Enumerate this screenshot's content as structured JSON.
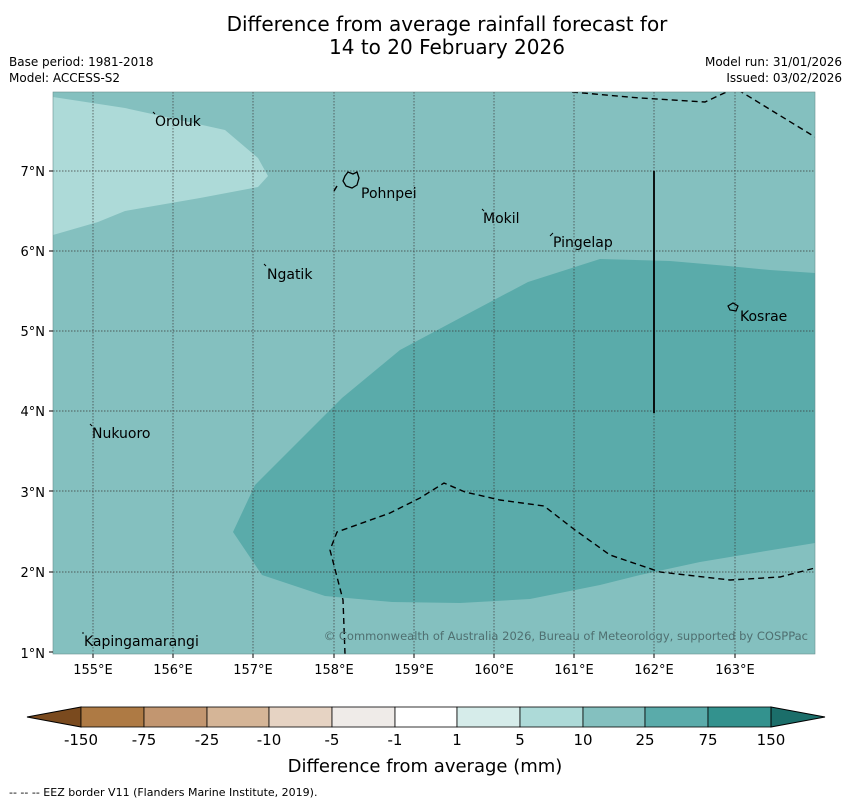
{
  "title_line1": "Difference from average rainfall forecast for",
  "title_line2": "14 to 20 February 2026",
  "base_period": "Base period: 1981-2018",
  "model": "Model: ACCESS-S2",
  "model_run": "Model run: 31/01/2026",
  "issued": "Issued: 03/02/2026",
  "copyright": "© Commonwealth of Australia 2026, Bureau of Meteorology, supported by COSPPac",
  "lat_labels": [
    "7°N",
    "6°N",
    "5°N",
    "4°N",
    "3°N",
    "2°N",
    "1°N"
  ],
  "lon_labels": [
    "155°E",
    "156°E",
    "157°E",
    "158°E",
    "159°E",
    "160°E",
    "161°E",
    "162°E",
    "163°E"
  ],
  "places": [
    {
      "name": "Oroluk"
    },
    {
      "name": "Pohnpei"
    },
    {
      "name": "Mokil"
    },
    {
      "name": "Pingelap"
    },
    {
      "name": "Ngatik"
    },
    {
      "name": "Kosrae"
    },
    {
      "name": "Nukuoro"
    },
    {
      "name": "Kapingamarangi"
    }
  ],
  "colorbar": {
    "label": "Difference from average (mm)",
    "ticks": [
      "-150",
      "-75",
      "-25",
      "-10",
      "-5",
      "-1",
      "1",
      "5",
      "10",
      "25",
      "75",
      "150"
    ],
    "colors": [
      "#7a4a1e",
      "#ae7a44",
      "#c29670",
      "#d5b597",
      "#e6d3c3",
      "#efebe8",
      "#ffffff",
      "#d6ecea",
      "#addad8",
      "#84c0bf",
      "#5aabaa",
      "#33928e",
      "#1b6e6a"
    ]
  },
  "map_colors": {
    "class_5_10": "#addad8",
    "class_10_25": "#84c0bf",
    "class_25_75": "#5aabaa"
  },
  "footnote": "--  --  -- EEZ border V11 (Flanders Marine Institute, 2019)."
}
